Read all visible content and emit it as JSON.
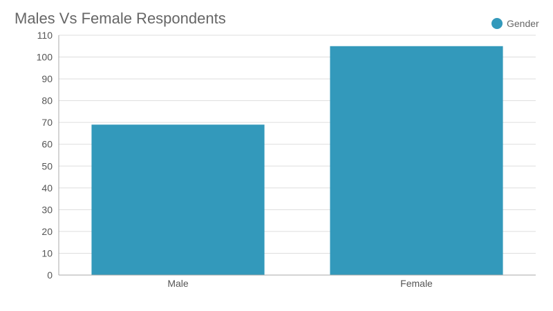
{
  "chart_data": {
    "type": "bar",
    "title": "Males Vs Female Respondents",
    "categories": [
      "Male",
      "Female"
    ],
    "series": [
      {
        "name": "Gender",
        "values": [
          69,
          105
        ],
        "color": "#3399bb"
      }
    ],
    "ylim": [
      0,
      110
    ],
    "yticks": [
      0,
      10,
      20,
      30,
      40,
      50,
      60,
      70,
      80,
      90,
      100,
      110
    ],
    "grid": true,
    "legend_position": "top-right"
  }
}
